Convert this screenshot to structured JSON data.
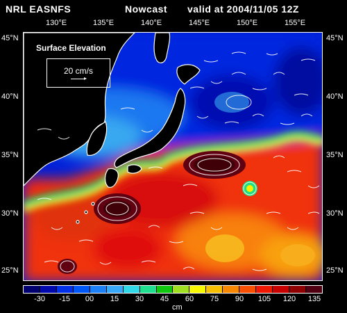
{
  "header": {
    "model": "NRL EASNFS",
    "product": "Nowcast",
    "valid": "valid at 2004/11/05 12Z"
  },
  "top_longitudes": [
    "130°E",
    "135°E",
    "140°E",
    "145°E",
    "150°E",
    "155°E"
  ],
  "lat_labels": [
    "45°N",
    "40°N",
    "35°N",
    "30°N",
    "25°N"
  ],
  "inset": {
    "title": "Surface Elevation",
    "scale_label": "20 cm/s"
  },
  "colorbar": {
    "colors": [
      "#000070",
      "#0008b0",
      "#0030e8",
      "#0058f8",
      "#1c80f8",
      "#38a8f8",
      "#30d8e8",
      "#20e090",
      "#10c810",
      "#a0e020",
      "#f8f800",
      "#f8c000",
      "#f88800",
      "#f85000",
      "#f01800",
      "#c80000",
      "#900000",
      "#500010"
    ],
    "ticks": [
      "-30",
      "-15",
      "00",
      "15",
      "30",
      "45",
      "60",
      "75",
      "90",
      "105",
      "120",
      "135"
    ],
    "unit": "cm"
  },
  "colors": {
    "background": "#000000",
    "land": "#000000",
    "coast": "#ffffff",
    "deep_blue": "#0018c8",
    "mid_blue": "#1c78f0",
    "cyan": "#38c8f0",
    "green": "#20e090",
    "yellow": "#f8f000",
    "red": "#f02818",
    "dark_red": "#500010"
  }
}
